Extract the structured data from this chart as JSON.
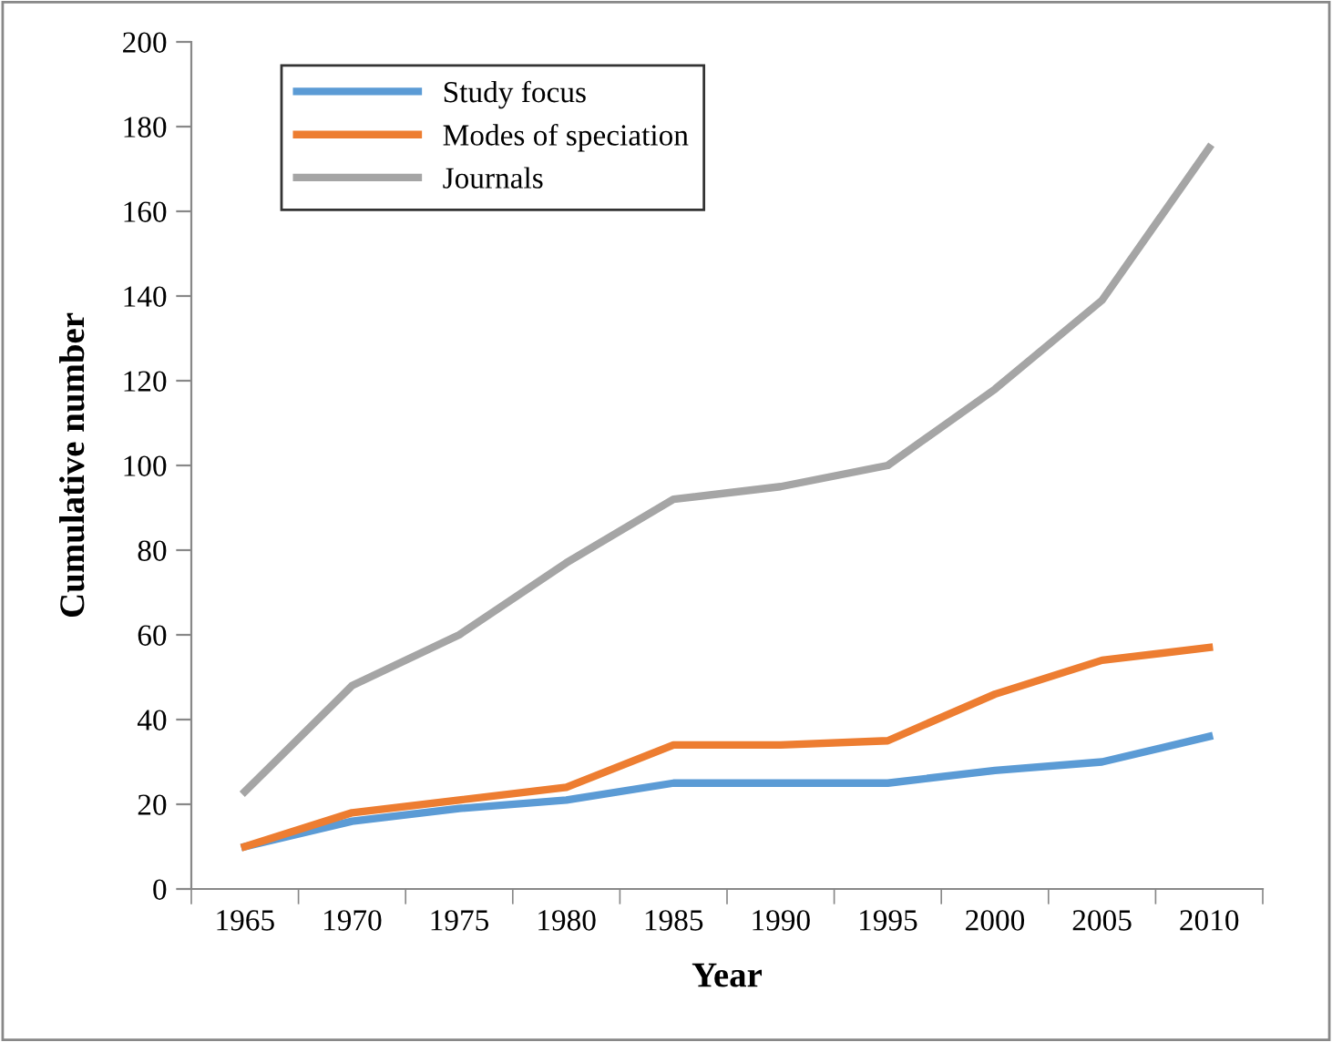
{
  "chart_data": {
    "type": "line",
    "xlabel": "Year",
    "ylabel": "Cumulative number",
    "categories": [
      "1965",
      "1970",
      "1975",
      "1980",
      "1985",
      "1990",
      "1995",
      "2000",
      "2005",
      "2010"
    ],
    "series": [
      {
        "name": "Study focus",
        "color": "#5b9bd5",
        "values": [
          10,
          16,
          19,
          21,
          25,
          25,
          25,
          28,
          30,
          36
        ]
      },
      {
        "name": "Modes of speciation",
        "color": "#ed7d31",
        "values": [
          10,
          18,
          21,
          24,
          34,
          34,
          35,
          46,
          54,
          57
        ]
      },
      {
        "name": "Journals",
        "color": "#a5a5a5",
        "values": [
          23,
          48,
          60,
          77,
          92,
          95,
          100,
          118,
          139,
          175
        ]
      }
    ],
    "ylim": [
      0,
      200
    ],
    "yticks": [
      0,
      20,
      40,
      60,
      80,
      100,
      120,
      140,
      160,
      180,
      200
    ],
    "grid": false,
    "legend": "top left",
    "marker": "none",
    "line_style": "solid"
  }
}
